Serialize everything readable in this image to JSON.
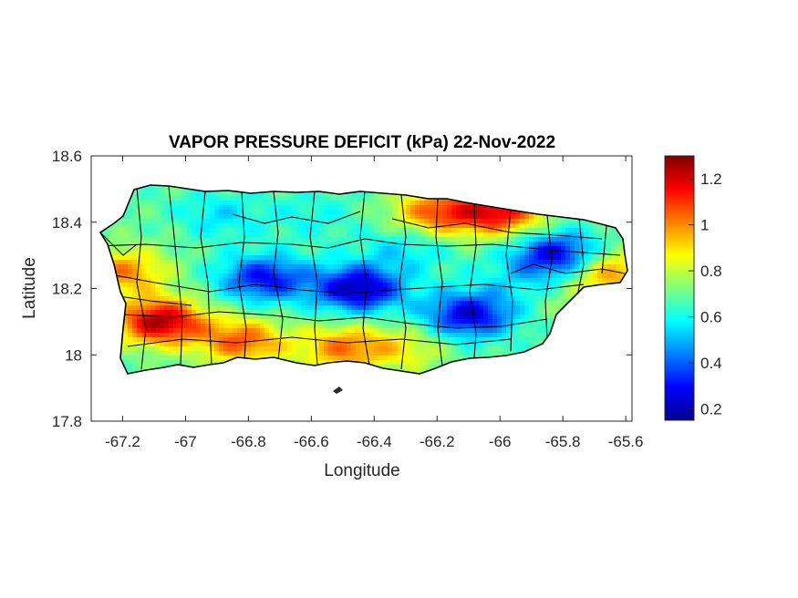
{
  "chart_data": {
    "type": "heatmap",
    "title": "VAPOR PRESSURE DEFICIT (kPa) 22-Nov-2022",
    "xlabel": "Longitude",
    "ylabel": "Latitude",
    "xlim": [
      -67.3,
      -65.58
    ],
    "ylim": [
      17.8,
      18.6
    ],
    "x_ticks": [
      -67.2,
      -67,
      -66.8,
      -66.6,
      -66.4,
      -66.2,
      -66,
      -65.8,
      -65.6
    ],
    "x_tick_labels": [
      "-67.2",
      "-67",
      "-66.8",
      "-66.6",
      "-66.4",
      "-66.2",
      "-66",
      "-65.8",
      "-65.6"
    ],
    "y_ticks": [
      17.8,
      18,
      18.2,
      18.4,
      18.6
    ],
    "y_tick_labels": [
      "17.8",
      "18",
      "18.2",
      "18.4",
      "18.6"
    ],
    "colorbar": {
      "colormap": "jet",
      "range": [
        0.15,
        1.3
      ],
      "ticks": [
        0.2,
        0.4,
        0.6,
        0.8,
        1,
        1.2
      ],
      "tick_labels": [
        "0.2",
        "0.4",
        "0.6",
        "0.8",
        "1",
        "1.2"
      ]
    },
    "grid": false,
    "region": "Puerto Rico",
    "field_features": [
      {
        "lon": -66.45,
        "lat": 18.2,
        "value": 0.2
      },
      {
        "lon": -66.75,
        "lat": 18.23,
        "value": 0.3
      },
      {
        "lon": -66.1,
        "lat": 18.12,
        "value": 0.25
      },
      {
        "lon": -65.82,
        "lat": 18.3,
        "value": 0.25
      },
      {
        "lon": -67.08,
        "lat": 18.1,
        "value": 1.25
      },
      {
        "lon": -66.0,
        "lat": 18.43,
        "value": 1.15
      },
      {
        "lon": -66.2,
        "lat": 18.43,
        "value": 1.05
      },
      {
        "lon": -66.82,
        "lat": 18.04,
        "value": 1.05
      },
      {
        "lon": -67.2,
        "lat": 18.25,
        "value": 1.0
      },
      {
        "lon": -65.65,
        "lat": 18.25,
        "value": 1.0
      },
      {
        "lon": -66.5,
        "lat": 18.02,
        "value": 1.0
      },
      {
        "lon": -66.6,
        "lat": 18.42,
        "value": 0.6
      },
      {
        "lon": -66.9,
        "lat": 18.42,
        "value": 0.55
      },
      {
        "lon": -67.05,
        "lat": 18.38,
        "value": 0.7
      },
      {
        "lon": -66.3,
        "lat": 18.32,
        "value": 0.55
      },
      {
        "lon": -65.95,
        "lat": 18.22,
        "value": 0.6
      },
      {
        "lon": -65.75,
        "lat": 18.15,
        "value": 0.75
      },
      {
        "lon": -66.3,
        "lat": 18.02,
        "value": 0.85
      }
    ]
  }
}
